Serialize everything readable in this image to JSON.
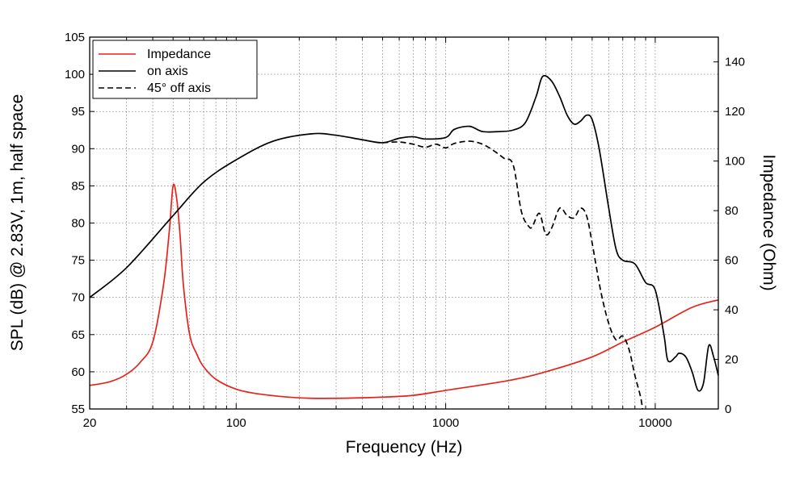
{
  "chart_data": {
    "type": "line",
    "title": "",
    "xlabel": "Frequency (Hz)",
    "ylabel": "SPL (dB) @ 2.83V, 1m, half space",
    "y2label": "Impedance (Ohm)",
    "xscale": "log",
    "xlim": [
      20,
      20000
    ],
    "ylim": [
      55,
      105
    ],
    "y2lim": [
      0,
      150
    ],
    "grid": true,
    "legend_position": "top-left",
    "x_ticks": [
      {
        "value": 20,
        "label": "20"
      },
      {
        "value": 100,
        "label": "100"
      },
      {
        "value": 1000,
        "label": "1000"
      },
      {
        "value": 10000,
        "label": "10000"
      }
    ],
    "y_ticks": [
      55,
      60,
      65,
      70,
      75,
      80,
      85,
      90,
      95,
      100,
      105
    ],
    "y2_ticks": [
      0,
      20,
      40,
      60,
      80,
      100,
      120,
      140
    ],
    "series": [
      {
        "name": "Impedance",
        "axis": "right",
        "color": "#e8221a",
        "dash": "solid",
        "points": [
          [
            20,
            9.5
          ],
          [
            25,
            11
          ],
          [
            30,
            14
          ],
          [
            35,
            19
          ],
          [
            40,
            27
          ],
          [
            45,
            50
          ],
          [
            48,
            72
          ],
          [
            50,
            90
          ],
          [
            52,
            85
          ],
          [
            54,
            70
          ],
          [
            56,
            50
          ],
          [
            60,
            30
          ],
          [
            65,
            22
          ],
          [
            70,
            17
          ],
          [
            80,
            12
          ],
          [
            100,
            8
          ],
          [
            130,
            6
          ],
          [
            200,
            4.5
          ],
          [
            300,
            4.3
          ],
          [
            500,
            4.8
          ],
          [
            700,
            5.5
          ],
          [
            1000,
            7.5
          ],
          [
            2000,
            11.5
          ],
          [
            3000,
            15
          ],
          [
            5000,
            21
          ],
          [
            7000,
            27
          ],
          [
            10000,
            33
          ],
          [
            15000,
            41
          ],
          [
            20000,
            44
          ]
        ]
      },
      {
        "name": "on axis",
        "axis": "left",
        "color": "#000000",
        "dash": "solid",
        "points": [
          [
            20,
            70
          ],
          [
            30,
            74
          ],
          [
            50,
            81
          ],
          [
            70,
            85.5
          ],
          [
            100,
            88.5
          ],
          [
            150,
            91
          ],
          [
            230,
            92
          ],
          [
            300,
            91.8
          ],
          [
            400,
            91.2
          ],
          [
            500,
            90.8
          ],
          [
            600,
            91.4
          ],
          [
            700,
            91.6
          ],
          [
            800,
            91.3
          ],
          [
            1000,
            91.5
          ],
          [
            1100,
            92.6
          ],
          [
            1300,
            93
          ],
          [
            1500,
            92.3
          ],
          [
            1800,
            92.3
          ],
          [
            2100,
            92.5
          ],
          [
            2400,
            93.5
          ],
          [
            2700,
            97
          ],
          [
            2900,
            99.7
          ],
          [
            3200,
            99.1
          ],
          [
            3500,
            97
          ],
          [
            3800,
            94.5
          ],
          [
            4100,
            93.3
          ],
          [
            4400,
            93.7
          ],
          [
            4700,
            94.5
          ],
          [
            5000,
            93.9
          ],
          [
            5400,
            90
          ],
          [
            6000,
            82
          ],
          [
            6500,
            76.5
          ],
          [
            7000,
            75
          ],
          [
            8000,
            74.5
          ],
          [
            9000,
            72
          ],
          [
            10000,
            71
          ],
          [
            11000,
            65
          ],
          [
            11500,
            61.5
          ],
          [
            12500,
            62
          ],
          [
            13000,
            62.5
          ],
          [
            14000,
            62
          ],
          [
            15000,
            60
          ],
          [
            16000,
            57.5
          ],
          [
            17000,
            58.5
          ],
          [
            18000,
            63.5
          ],
          [
            19000,
            62
          ],
          [
            20000,
            59.5
          ]
        ]
      },
      {
        "name": "45° off axis",
        "axis": "left",
        "color": "#000000",
        "dash": "dashed",
        "points": [
          [
            500,
            90.8
          ],
          [
            600,
            90.9
          ],
          [
            700,
            90.6
          ],
          [
            800,
            90.2
          ],
          [
            900,
            90.6
          ],
          [
            1000,
            90.1
          ],
          [
            1100,
            90.7
          ],
          [
            1300,
            91.0
          ],
          [
            1500,
            90.6
          ],
          [
            1700,
            89.7
          ],
          [
            1900,
            88.7
          ],
          [
            2100,
            87.8
          ],
          [
            2300,
            81.5
          ],
          [
            2500,
            79.5
          ],
          [
            2600,
            79.6
          ],
          [
            2800,
            81.3
          ],
          [
            3000,
            78.5
          ],
          [
            3200,
            79.3
          ],
          [
            3500,
            82.0
          ],
          [
            3800,
            81.0
          ],
          [
            4100,
            80.7
          ],
          [
            4400,
            82.0
          ],
          [
            4700,
            81.0
          ],
          [
            5000,
            77.3
          ],
          [
            5500,
            70.8
          ],
          [
            6000,
            66.5
          ],
          [
            6500,
            64.3
          ],
          [
            7000,
            64.8
          ],
          [
            7500,
            63.0
          ],
          [
            8000,
            59.5
          ],
          [
            8500,
            56.7
          ],
          [
            8700,
            55
          ]
        ]
      }
    ],
    "legend": [
      {
        "label": "Impedance",
        "color": "#e8221a",
        "dash": "solid"
      },
      {
        "label": "on axis",
        "color": "#000000",
        "dash": "solid"
      },
      {
        "label": "45° off axis",
        "color": "#000000",
        "dash": "dashed"
      }
    ]
  }
}
